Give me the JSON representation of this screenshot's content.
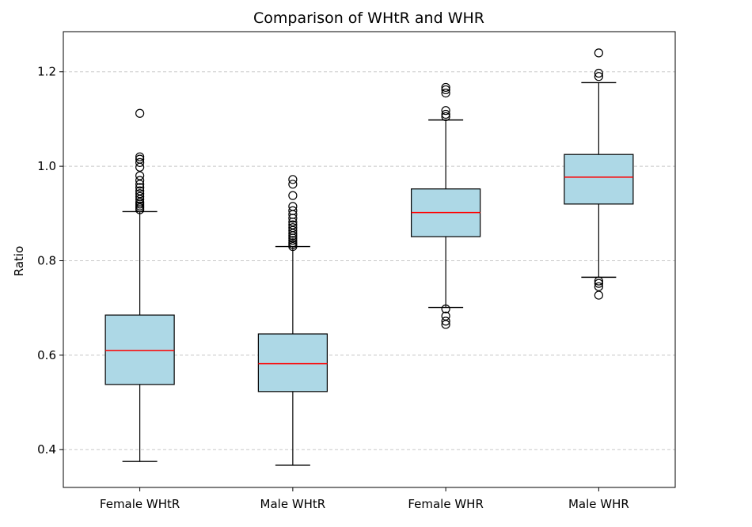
{
  "chart_data": {
    "type": "box",
    "title": "Comparison of WHtR and WHR",
    "xlabel": "",
    "ylabel": "Ratio",
    "ylim": [
      0.32,
      1.285
    ],
    "yticks": [
      0.4,
      0.6,
      0.8,
      1.0,
      1.2
    ],
    "ytick_labels": [
      "0.4",
      "0.6",
      "0.8",
      "1.0",
      "1.2"
    ],
    "grid": "y-dashed",
    "colors": {
      "box_fill": "#add8e6",
      "median": "#ff0000",
      "outline": "#000000",
      "grid": "#c8c8c8"
    },
    "boxes": [
      {
        "category": "Female WHtR",
        "whisker_low": 0.375,
        "q1": 0.538,
        "median": 0.61,
        "q3": 0.685,
        "whisker_high": 0.904,
        "outliers": [
          0.908,
          0.912,
          0.916,
          0.92,
          0.924,
          0.93,
          0.936,
          0.942,
          0.948,
          0.955,
          0.962,
          0.97,
          0.98,
          0.998,
          1.008,
          1.015,
          1.02,
          1.112
        ]
      },
      {
        "category": "Male WHtR",
        "whisker_low": 0.367,
        "q1": 0.523,
        "median": 0.582,
        "q3": 0.645,
        "whisker_high": 0.83,
        "outliers": [
          0.83,
          0.834,
          0.838,
          0.843,
          0.848,
          0.853,
          0.858,
          0.864,
          0.87,
          0.876,
          0.882,
          0.89,
          0.898,
          0.906,
          0.915,
          0.938,
          0.962,
          0.972
        ]
      },
      {
        "category": "Female WHR",
        "whisker_low": 0.701,
        "q1": 0.851,
        "median": 0.902,
        "q3": 0.952,
        "whisker_high": 1.098,
        "outliers": [
          0.665,
          0.672,
          0.683,
          0.698,
          1.105,
          1.11,
          1.118,
          1.155,
          1.162,
          1.167
        ]
      },
      {
        "category": "Male WHR",
        "whisker_low": 0.765,
        "q1": 0.92,
        "median": 0.977,
        "q3": 1.025,
        "whisker_high": 1.177,
        "outliers": [
          0.727,
          0.745,
          0.752,
          0.757,
          1.19,
          1.197,
          1.24
        ]
      }
    ]
  }
}
